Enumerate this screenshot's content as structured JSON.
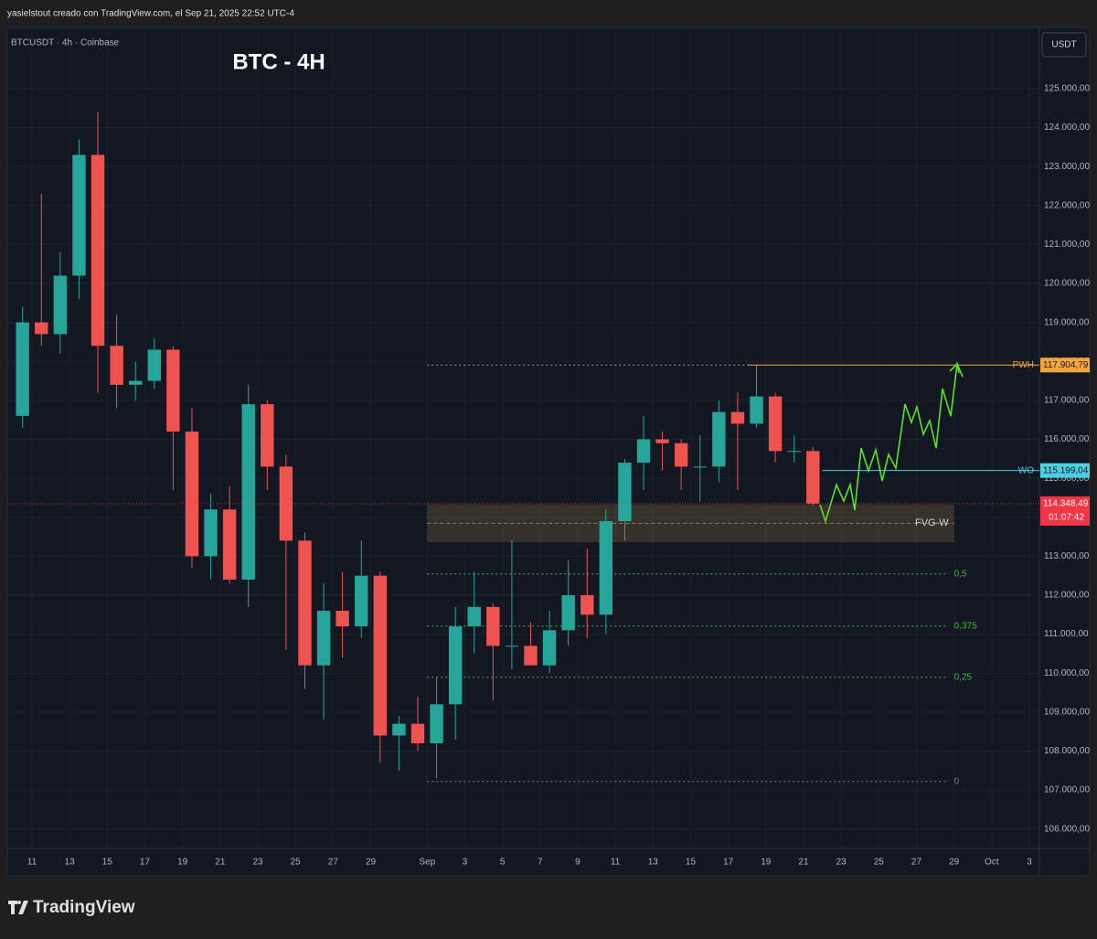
{
  "header": "yasielstout creado con TradingView.com, el Sep 21, 2025 22:52 UTC-4",
  "brand": "TradingView",
  "chart_data": {
    "type": "candlestick",
    "title": "BTC - 4H",
    "symbol": "BTCUSDT · 4h · Coinbase",
    "currency": "USDT",
    "up_color": "#26a69a",
    "down_color": "#ef5350",
    "x": [
      "Aug 10",
      "Aug 11",
      "Aug 12",
      "Aug 13",
      "Aug 14",
      "Aug 15",
      "Aug 16",
      "Aug 17",
      "Aug 18",
      "Aug 19",
      "Aug 20",
      "Aug 21",
      "Aug 22",
      "Aug 23",
      "Aug 24",
      "Aug 25",
      "Aug 26",
      "Aug 27",
      "Aug 28",
      "Aug 29",
      "Aug 30",
      "Aug 31",
      "Sep 1",
      "Sep 2",
      "Sep 3",
      "Sep 4",
      "Sep 5",
      "Sep 6",
      "Sep 7",
      "Sep 8",
      "Sep 9",
      "Sep 10",
      "Sep 11",
      "Sep 12",
      "Sep 13",
      "Sep 14",
      "Sep 15",
      "Sep 16",
      "Sep 17",
      "Sep 18",
      "Sep 19",
      "Sep 20",
      "Sep 21"
    ],
    "open": [
      116600,
      119000,
      118700,
      120200,
      123300,
      118400,
      117400,
      117500,
      118300,
      116200,
      113000,
      114200,
      112400,
      116900,
      115300,
      113400,
      110200,
      111600,
      111200,
      112500,
      108400,
      108700,
      108200,
      109200,
      111200,
      111700,
      110700,
      110700,
      110200,
      111100,
      112000,
      111500,
      113900,
      115400,
      116000,
      115900,
      115300,
      115300,
      116700,
      116400,
      117100,
      115700,
      115700
    ],
    "high": [
      119400,
      122300,
      120800,
      123700,
      124400,
      119200,
      118000,
      118600,
      118400,
      116800,
      114600,
      114800,
      117400,
      117000,
      115600,
      113600,
      112300,
      112600,
      113400,
      112600,
      108900,
      109400,
      109900,
      111700,
      112600,
      111800,
      113400,
      111300,
      111600,
      112900,
      113200,
      114200,
      115500,
      116600,
      116200,
      116000,
      116100,
      117000,
      117200,
      117900,
      117200,
      116100,
      115800
    ],
    "low": [
      116300,
      118400,
      118200,
      119600,
      117200,
      116800,
      117000,
      117300,
      114700,
      112700,
      112400,
      112300,
      111700,
      114700,
      110600,
      109600,
      108800,
      110400,
      110900,
      107700,
      107500,
      108000,
      107300,
      108300,
      110500,
      109300,
      110100,
      110200,
      110000,
      110700,
      110900,
      111000,
      113400,
      114700,
      115200,
      114700,
      114400,
      114900,
      114700,
      116300,
      115400,
      115400,
      114300
    ],
    "close": [
      119000,
      118700,
      120200,
      123300,
      118400,
      117400,
      117500,
      118300,
      116200,
      113000,
      114200,
      112400,
      116900,
      115300,
      113400,
      110200,
      111600,
      111200,
      112500,
      108400,
      108700,
      108200,
      109200,
      111200,
      111700,
      110700,
      110700,
      110200,
      111100,
      112000,
      111500,
      113900,
      115400,
      116000,
      115900,
      115300,
      115300,
      116700,
      116400,
      117100,
      115700,
      115700,
      114348.49
    ],
    "xlim": [
      "Aug 10",
      "Oct 3"
    ],
    "xticks": [
      {
        "value": "Aug 11",
        "label": "11"
      },
      {
        "value": "Aug 13",
        "label": "13"
      },
      {
        "value": "Aug 15",
        "label": "15"
      },
      {
        "value": "Aug 17",
        "label": "17"
      },
      {
        "value": "Aug 19",
        "label": "19"
      },
      {
        "value": "Aug 21",
        "label": "21"
      },
      {
        "value": "Aug 23",
        "label": "23"
      },
      {
        "value": "Aug 25",
        "label": "25"
      },
      {
        "value": "Aug 27",
        "label": "27"
      },
      {
        "value": "Aug 29",
        "label": "29"
      },
      {
        "value": "Sep 1",
        "label": "Sep"
      },
      {
        "value": "Sep 3",
        "label": "3"
      },
      {
        "value": "Sep 5",
        "label": "5"
      },
      {
        "value": "Sep 7",
        "label": "7"
      },
      {
        "value": "Sep 9",
        "label": "9"
      },
      {
        "value": "Sep 11",
        "label": "11"
      },
      {
        "value": "Sep 13",
        "label": "13"
      },
      {
        "value": "Sep 15",
        "label": "15"
      },
      {
        "value": "Sep 17",
        "label": "17"
      },
      {
        "value": "Sep 19",
        "label": "19"
      },
      {
        "value": "Sep 21",
        "label": "21"
      },
      {
        "value": "Sep 23",
        "label": "23"
      },
      {
        "value": "Sep 25",
        "label": "25"
      },
      {
        "value": "Sep 27",
        "label": "27"
      },
      {
        "value": "Sep 29",
        "label": "29"
      },
      {
        "value": "Oct 1",
        "label": "Oct"
      },
      {
        "value": "Oct 3",
        "label": "3"
      }
    ],
    "ylim": [
      105500,
      126570
    ],
    "yticks": [
      {
        "value": 106000,
        "label": "106.000,00"
      },
      {
        "value": 107000,
        "label": "107.000,00"
      },
      {
        "value": 108000,
        "label": "108.000,00"
      },
      {
        "value": 109000,
        "label": "109.000,00"
      },
      {
        "value": 110000,
        "label": "110.000,00"
      },
      {
        "value": 111000,
        "label": "111.000,00"
      },
      {
        "value": 112000,
        "label": "112.000,00"
      },
      {
        "value": 113000,
        "label": "113.000,00"
      },
      {
        "value": 114000,
        "label": "114.000,00"
      },
      {
        "value": 115000,
        "label": "115.000,00"
      },
      {
        "value": 116000,
        "label": "116.000,00"
      },
      {
        "value": 117000,
        "label": "117.000,00"
      },
      {
        "value": 118000,
        "label": "118.000,00"
      },
      {
        "value": 119000,
        "label": "119.000,00"
      },
      {
        "value": 120000,
        "label": "120.000,00"
      },
      {
        "value": 121000,
        "label": "121.000,00"
      },
      {
        "value": 122000,
        "label": "122.000,00"
      },
      {
        "value": 123000,
        "label": "123.000,00"
      },
      {
        "value": 124000,
        "label": "124.000,00"
      },
      {
        "value": 125000,
        "label": "125.000,00"
      }
    ],
    "levels": [
      {
        "name": "PWH",
        "value": 117904.79,
        "label": "117.904,79",
        "color": "#f7a43a",
        "from": "Sep 18"
      },
      {
        "name": "WO",
        "value": 115199.04,
        "label": "115.199,04",
        "color": "#4dd0e1",
        "from": "Sep 22"
      }
    ],
    "last_price": {
      "value": 114348.49,
      "label": "114.348,49",
      "countdown": "01:07:42",
      "color": "#f23645"
    },
    "zone": {
      "name": "FVG-W",
      "top": 114330,
      "bottom": 113360,
      "from": "Sep 1",
      "to": "Sep 29"
    },
    "fib": [
      {
        "label": "0,5",
        "value": 112544
      },
      {
        "label": "0,375",
        "value": 111207
      },
      {
        "label": "0,25",
        "value": 109893
      },
      {
        "label": "0",
        "value": 107219
      }
    ]
  }
}
